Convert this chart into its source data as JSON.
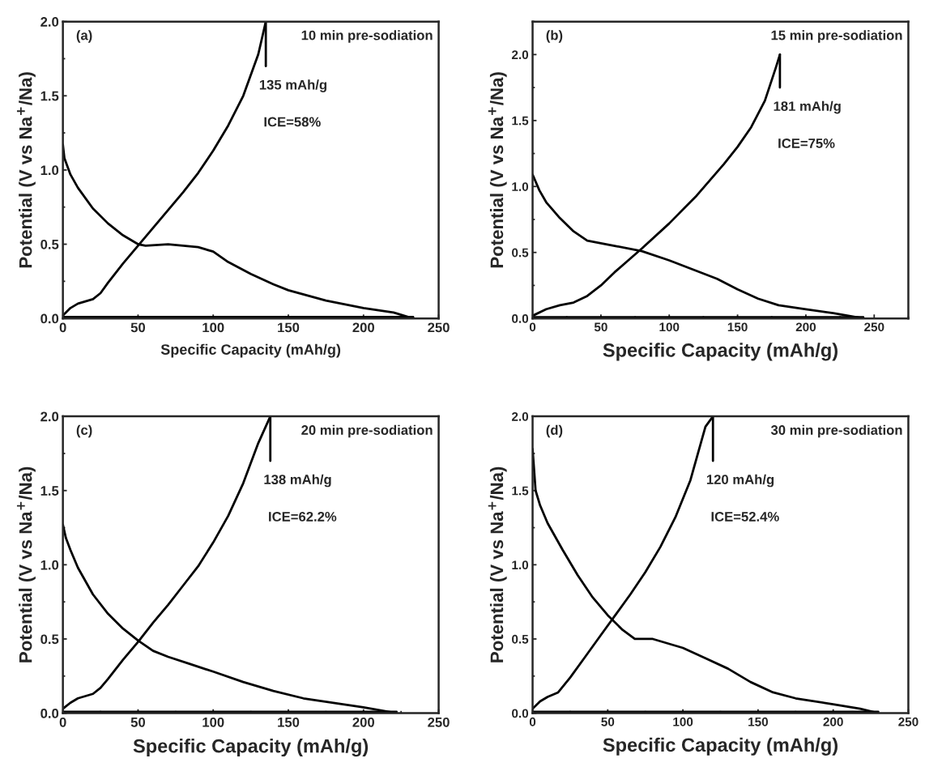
{
  "chart_data": [
    {
      "type": "line",
      "xlabel": "Specific Capacity (mAh/g)",
      "ylabel": "Potential (V vs Na$^{+}$/Na)",
      "xlim": [
        0,
        250
      ],
      "ylim": [
        0,
        2.0
      ],
      "xticks": [
        0,
        50,
        100,
        150,
        200,
        250
      ],
      "yticks": [
        {
          "value": 0,
          "label": "0.0"
        },
        {
          "value": 0.5,
          "label": "0.5"
        },
        {
          "value": 1,
          "label": "1.0"
        },
        {
          "value": 1.5,
          "label": "1.5"
        },
        {
          "value": 2,
          "label": "2.0"
        }
      ],
      "grid": false,
      "annotations": [
        "(a)",
        "10 min pre-sodiation",
        "135 mAh/g",
        "ICE=58%"
      ],
      "series": [
        {
          "color": "#000000",
          "x": [
            0,
            1,
            5,
            10,
            20,
            30,
            40,
            50,
            55,
            70,
            80,
            90,
            100,
            110,
            125,
            140,
            150,
            175,
            200,
            220,
            233
          ],
          "values": [
            1.17,
            1.08,
            0.97,
            0.88,
            0.74,
            0.64,
            0.56,
            0.5,
            0.49,
            0.5,
            0.49,
            0.48,
            0.45,
            0.38,
            0.3,
            0.23,
            0.19,
            0.12,
            0.07,
            0.04,
            0.0
          ]
        },
        {
          "color": "#000000",
          "x": [
            0,
            5,
            10,
            20,
            25,
            30,
            40,
            50,
            60,
            70,
            80,
            90,
            100,
            110,
            120,
            130,
            135
          ],
          "values": [
            0.02,
            0.07,
            0.1,
            0.13,
            0.17,
            0.24,
            0.37,
            0.49,
            0.61,
            0.73,
            0.85,
            0.98,
            1.13,
            1.3,
            1.5,
            1.78,
            2.0
          ]
        },
        {
          "color": "#000000",
          "x": [
            0,
            233
          ],
          "values": [
            0.01,
            0.01
          ]
        },
        {
          "color": "#000000",
          "x": [
            135,
            135
          ],
          "values": [
            2.0,
            1.7
          ]
        }
      ]
    },
    {
      "type": "line",
      "xlabel": "Specific Capacity (mAh/g)",
      "ylabel": "Potential (V vs Na$^{+}$/Na)",
      "xlim": [
        0,
        275
      ],
      "ylim": [
        0,
        2.25
      ],
      "xticks": [
        0,
        50,
        100,
        150,
        200,
        250
      ],
      "yticks": [
        {
          "value": 0,
          "label": "0.0"
        },
        {
          "value": 0.5,
          "label": "0.5"
        },
        {
          "value": 1,
          "label": "1.0"
        },
        {
          "value": 1.5,
          "label": "1.5"
        },
        {
          "value": 2,
          "label": "2.0"
        }
      ],
      "grid": false,
      "annotations": [
        "(b)",
        "15 min pre-sodiation",
        "181 mAh/g",
        "ICE=75%"
      ],
      "series": [
        {
          "color": "#000000",
          "x": [
            0,
            5,
            10,
            20,
            30,
            40,
            50,
            60,
            80,
            100,
            120,
            135,
            150,
            165,
            180,
            200,
            220,
            242
          ],
          "values": [
            1.09,
            0.97,
            0.88,
            0.76,
            0.66,
            0.59,
            0.57,
            0.55,
            0.51,
            0.44,
            0.36,
            0.3,
            0.22,
            0.15,
            0.1,
            0.07,
            0.04,
            0.0
          ]
        },
        {
          "color": "#000000",
          "x": [
            0,
            10,
            20,
            30,
            40,
            50,
            60,
            70,
            80,
            100,
            120,
            140,
            150,
            160,
            170,
            178,
            181
          ],
          "values": [
            0.02,
            0.07,
            0.1,
            0.12,
            0.17,
            0.25,
            0.35,
            0.44,
            0.53,
            0.72,
            0.93,
            1.17,
            1.3,
            1.45,
            1.65,
            1.9,
            2.0
          ]
        },
        {
          "color": "#000000",
          "x": [
            0,
            242
          ],
          "values": [
            0.01,
            0.01
          ]
        },
        {
          "color": "#000000",
          "x": [
            181,
            181
          ],
          "values": [
            2.0,
            1.75
          ]
        }
      ]
    },
    {
      "type": "line",
      "xlabel": "Specific Capacity (mAh/g)",
      "ylabel": "Potential (V vs Na$^{+}$/Na)",
      "xlim": [
        0,
        250
      ],
      "ylim": [
        0,
        2.0
      ],
      "xticks": [
        0,
        50,
        100,
        150,
        200,
        250
      ],
      "yticks": [
        {
          "value": 0,
          "label": "0.0"
        },
        {
          "value": 0.5,
          "label": "0.5"
        },
        {
          "value": 1,
          "label": "1.0"
        },
        {
          "value": 1.5,
          "label": "1.5"
        },
        {
          "value": 2,
          "label": "2.0"
        }
      ],
      "grid": false,
      "annotations": [
        "(c)",
        "20 min pre-sodiation",
        "138 mAh/g",
        "ICE=62.2%"
      ],
      "series": [
        {
          "color": "#000000",
          "x": [
            0,
            2,
            5,
            10,
            20,
            30,
            40,
            50,
            60,
            70,
            85,
            100,
            120,
            140,
            160,
            180,
            200,
            222
          ],
          "values": [
            1.27,
            1.18,
            1.1,
            0.98,
            0.8,
            0.67,
            0.57,
            0.49,
            0.42,
            0.38,
            0.33,
            0.28,
            0.21,
            0.15,
            0.1,
            0.07,
            0.04,
            0.0
          ]
        },
        {
          "color": "#000000",
          "x": [
            0,
            5,
            10,
            20,
            25,
            30,
            40,
            50,
            60,
            70,
            80,
            90,
            100,
            110,
            120,
            130,
            138
          ],
          "values": [
            0.03,
            0.07,
            0.1,
            0.13,
            0.17,
            0.23,
            0.36,
            0.48,
            0.61,
            0.73,
            0.86,
            0.99,
            1.15,
            1.33,
            1.55,
            1.82,
            2.0
          ]
        },
        {
          "color": "#000000",
          "x": [
            0,
            222
          ],
          "values": [
            0.01,
            0.01
          ]
        },
        {
          "color": "#000000",
          "x": [
            138,
            138
          ],
          "values": [
            2.0,
            1.7
          ]
        }
      ]
    },
    {
      "type": "line",
      "xlabel": "Specific Capacity (mAh/g)",
      "ylabel": "Potential (V vs Na$^{+}$/Na)",
      "xlim": [
        0,
        250
      ],
      "ylim": [
        0,
        2.0
      ],
      "xticks": [
        0,
        50,
        100,
        150,
        200,
        250
      ],
      "yticks": [
        {
          "value": 0,
          "label": "0.0"
        },
        {
          "value": 0.5,
          "label": "0.5"
        },
        {
          "value": 1,
          "label": "1.0"
        },
        {
          "value": 1.5,
          "label": "1.5"
        },
        {
          "value": 2,
          "label": "2.0"
        }
      ],
      "grid": false,
      "annotations": [
        "(d)",
        "30 min pre-sodiation",
        "120 mAh/g",
        "ICE=52.4%"
      ],
      "series": [
        {
          "color": "#000000",
          "x": [
            0,
            2,
            5,
            10,
            20,
            30,
            40,
            50,
            60,
            68,
            80,
            100,
            115,
            130,
            145,
            160,
            175,
            200,
            218,
            230
          ],
          "values": [
            1.78,
            1.5,
            1.4,
            1.28,
            1.1,
            0.93,
            0.78,
            0.66,
            0.56,
            0.5,
            0.5,
            0.44,
            0.37,
            0.3,
            0.21,
            0.14,
            0.1,
            0.06,
            0.03,
            0.0
          ]
        },
        {
          "color": "#000000",
          "x": [
            0,
            5,
            10,
            17,
            25,
            35,
            45,
            55,
            65,
            75,
            85,
            95,
            105,
            110,
            115,
            120
          ],
          "values": [
            0.03,
            0.08,
            0.11,
            0.14,
            0.24,
            0.38,
            0.52,
            0.66,
            0.8,
            0.95,
            1.12,
            1.32,
            1.57,
            1.75,
            1.93,
            2.0
          ]
        },
        {
          "color": "#000000",
          "x": [
            0,
            230
          ],
          "values": [
            0.01,
            0.01
          ]
        },
        {
          "color": "#000000",
          "x": [
            120,
            120
          ],
          "values": [
            2.0,
            1.7
          ]
        }
      ]
    }
  ]
}
